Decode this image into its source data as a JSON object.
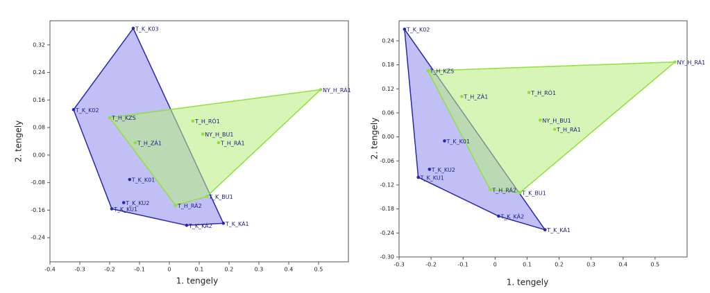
{
  "chart_data": [
    {
      "type": "scatter",
      "hull": true,
      "x_label": "1. tengely",
      "y_label": "2. tengely",
      "xlim": [
        -0.4,
        0.6
      ],
      "ylim": [
        -0.31,
        0.39
      ],
      "xticks": [
        -0.4,
        -0.3,
        -0.2,
        -0.1,
        0,
        0.1,
        0.2,
        0.3,
        0.4,
        0.5
      ],
      "yticks": [
        -0.24,
        -0.16,
        -0.08,
        {
          "value": 0,
          "label": "0.00"
        },
        0.08,
        0.16,
        0.24,
        0.32
      ],
      "series": [
        {
          "color": "#2626b0",
          "fill": "#8c8cf0",
          "labels": [
            "T_K_K03",
            "T_K_K02",
            "T_K_K01",
            "T_K_KU2",
            "T_K_KU1",
            "T_K_KÁ2",
            "T_K_KÁ1"
          ],
          "x": [
            -0.121,
            -0.321,
            -0.133,
            -0.153,
            -0.193,
            0.058,
            0.181
          ],
          "y": [
            0.368,
            0.132,
            -0.071,
            -0.138,
            -0.156,
            -0.204,
            -0.198
          ]
        },
        {
          "color": "#8fe03a",
          "fill": "#b6ec7a",
          "labels": [
            "NY_H_RÁ1",
            "T_H_KZS",
            "T_H_RÓ1",
            "NY_H_BU1",
            "T_H_RÁ1",
            "T_H_ZÁ1",
            "T_H_RÁ2",
            "T_K_BU1"
          ],
          "x": [
            0.507,
            -0.2,
            0.079,
            0.112,
            0.165,
            -0.114,
            0.021,
            0.126
          ],
          "y": [
            0.19,
            0.109,
            0.099,
            0.061,
            0.036,
            0.036,
            -0.146,
            -0.12
          ]
        }
      ]
    },
    {
      "type": "scatter",
      "hull": true,
      "x_label": "1. tengely",
      "y_label": "2. tengely",
      "xlim": [
        -0.3,
        0.6
      ],
      "ylim": [
        -0.3,
        0.29
      ],
      "xticks": [
        -0.3,
        -0.2,
        -0.1,
        0,
        0.1,
        0.2,
        0.3,
        0.4,
        0.5
      ],
      "yticks": [
        {
          "value": -0.3,
          "label": "-0.30"
        },
        -0.24,
        -0.18,
        -0.12,
        -0.06,
        {
          "value": 0,
          "label": "0.00"
        },
        0.06,
        0.12,
        0.18,
        0.24
      ],
      "series": [
        {
          "color": "#2626b0",
          "fill": "#8c8cf0",
          "labels": [
            "T_K_K02",
            "T_K_K01",
            "T_K_KU2",
            "T_K_KU1",
            "T_K_KÁ2",
            "T_K_KÁ1"
          ],
          "x": [
            -0.283,
            -0.158,
            -0.205,
            -0.24,
            0.011,
            0.156
          ],
          "y": [
            0.269,
            -0.01,
            -0.081,
            -0.101,
            -0.198,
            -0.232
          ]
        },
        {
          "color": "#8fe03a",
          "fill": "#b6ec7a",
          "labels": [
            "NY_H_RÁ1",
            "T_H_KZS",
            "T_H_ZÁ1",
            "T_H_RÓ1",
            "NY_H_BU1",
            "T_H_RÁ1",
            "T_H_RÁ2",
            "T_K_BU1"
          ],
          "x": [
            0.562,
            -0.21,
            -0.104,
            0.106,
            0.141,
            0.186,
            -0.015,
            0.078
          ],
          "y": [
            0.187,
            0.165,
            0.101,
            0.111,
            0.042,
            0.019,
            -0.132,
            -0.139
          ]
        }
      ]
    }
  ]
}
